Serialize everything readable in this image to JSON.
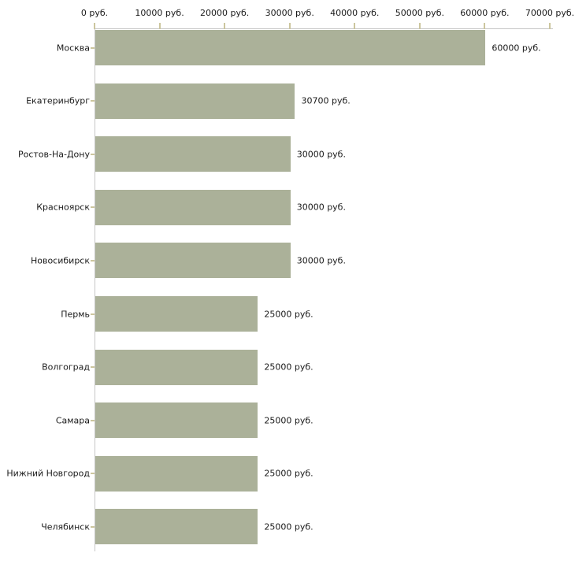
{
  "page": {
    "background": "#ffffff"
  },
  "chart_data": {
    "type": "bar",
    "orientation": "horizontal",
    "categories": [
      "Москва",
      "Екатеринбург",
      "Ростов-На-Дону",
      "Красноярск",
      "Новосибирск",
      "Пермь",
      "Волгоград",
      "Самара",
      "Нижний Новгород",
      "Челябинск"
    ],
    "values": [
      60000,
      30700,
      30000,
      30000,
      30000,
      25000,
      25000,
      25000,
      25000,
      25000
    ],
    "value_labels": [
      "60000 руб.",
      "30700 руб.",
      "30000 руб.",
      "30000 руб.",
      "30000 руб.",
      "25000 руб.",
      "25000 руб.",
      "25000 руб.",
      "25000 руб.",
      "25000 руб."
    ],
    "x_ticks": [
      0,
      10000,
      20000,
      30000,
      40000,
      50000,
      60000,
      70000
    ],
    "x_tick_labels": [
      "0 руб.",
      "10000 руб.",
      "20000 руб.",
      "30000 руб.",
      "40000 руб.",
      "50000 руб.",
      "60000 руб.",
      "70000 руб."
    ],
    "xlim": [
      0,
      70000
    ],
    "title": "",
    "xlabel": "",
    "ylabel": "",
    "grid": false,
    "legend": false,
    "axis_position": "top-left",
    "colors": {
      "bar": "#abb199",
      "axis_line": "#c6c6c6",
      "tick_mark": "#ccc69e",
      "text": "#1a1a1a"
    }
  }
}
